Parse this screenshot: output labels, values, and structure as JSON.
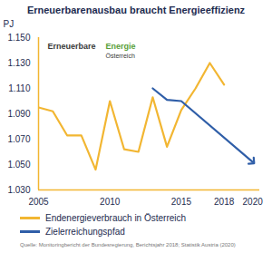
{
  "chart_data": {
    "type": "line",
    "title": "Erneuerbarenausbau braucht Energieeffizienz",
    "y_label": "PJ",
    "annotations": [
      "Erneuerbare",
      "Energie",
      "Österreich"
    ],
    "caption": "Quelle: Monitoringbericht der Bundesregierung, Berichtsjahr 2018; Statistik Austria (2020)",
    "series": [
      {
        "name": "Endenergieverbrauch in Österreich",
        "color": "#f2b632",
        "x": [
          2005,
          2006,
          2007,
          2008,
          2009,
          2010,
          2011,
          2012,
          2013,
          2014,
          2015,
          2016,
          2017,
          2018
        ],
        "values": [
          1095,
          1092,
          1073,
          1073,
          1046,
          1100,
          1062,
          1060,
          1103,
          1064,
          1093,
          1110,
          1130,
          1113
        ]
      },
      {
        "name": "Zielerreichungspfad",
        "color": "#2f5ea8",
        "marker": "arrow",
        "x": [
          2013,
          2014,
          2015,
          2020
        ],
        "values": [
          1110,
          1101,
          1100,
          1052
        ]
      }
    ],
    "xlim": [
      2005,
      2020.5
    ],
    "xticks": [
      2005,
      2010,
      2015,
      2018,
      2020
    ],
    "ylim": [
      1030,
      1150
    ],
    "yticks": [
      {
        "value": 1030,
        "label": "1.030"
      },
      {
        "value": 1050,
        "label": "1.050"
      },
      {
        "value": 1070,
        "label": "1.070"
      },
      {
        "value": 1090,
        "label": "1.090"
      },
      {
        "value": 1110,
        "label": "1.110"
      },
      {
        "value": 1130,
        "label": "1.130"
      },
      {
        "value": 1150,
        "label": "1.150"
      }
    ],
    "grid": false,
    "legend": "bottom"
  }
}
